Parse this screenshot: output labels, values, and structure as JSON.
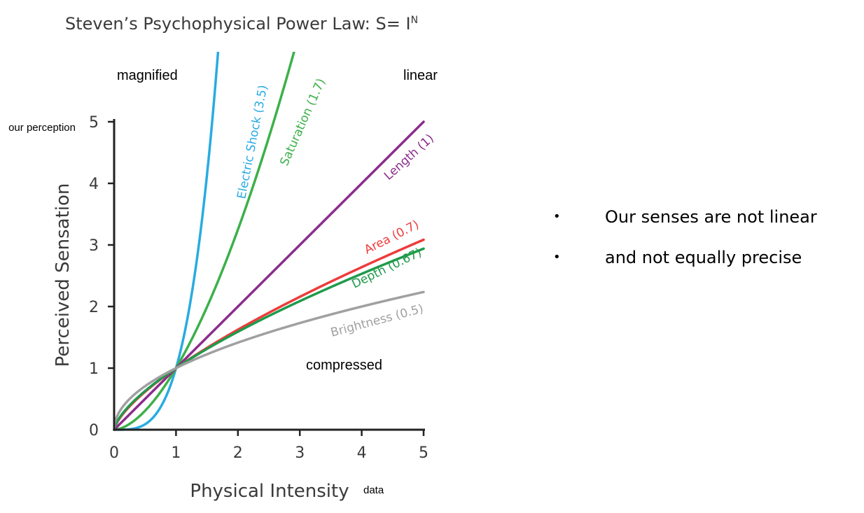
{
  "slide": {
    "bullets": [
      "Our senses are not linear",
      "and not equally precise"
    ],
    "annotations": {
      "magnified": "magnified",
      "linear": "linear",
      "compressed": "compressed",
      "y_note": "our perception",
      "x_note": "data"
    }
  },
  "chart_data": {
    "type": "line",
    "title": "Steven’s Psychophysical Power Law: S= I",
    "title_superscript": "N",
    "xlabel": "Physical Intensity",
    "ylabel": "Perceived Sensation",
    "xlim": [
      0,
      5
    ],
    "ylim": [
      0,
      5
    ],
    "xticks": [
      "0",
      "1",
      "2",
      "3",
      "4",
      "5"
    ],
    "yticks": [
      "0",
      "1",
      "2",
      "3",
      "4",
      "5"
    ],
    "grid": false,
    "formula": "y = x^exponent",
    "series": [
      {
        "name": "Electric Shock (3.5)",
        "exponent": 3.5,
        "color": "#29abe2"
      },
      {
        "name": "Saturation (1.7)",
        "exponent": 1.7,
        "color": "#3cb04a"
      },
      {
        "name": "Length (1)",
        "exponent": 1.0,
        "color": "#8b2c8c"
      },
      {
        "name": "Area (0.7)",
        "exponent": 0.7,
        "color": "#ee3b3b"
      },
      {
        "name": "Depth (0.67)",
        "exponent": 0.67,
        "color": "#1f9a4b"
      },
      {
        "name": "Brightness (0.5)",
        "exponent": 0.5,
        "color": "#a0a0a2"
      }
    ]
  }
}
